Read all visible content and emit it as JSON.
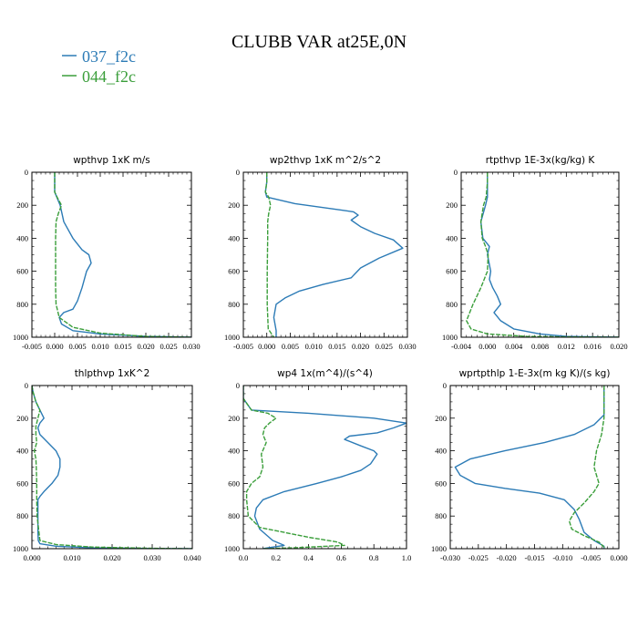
{
  "figure": {
    "title": "CLUBB VAR at25E,0N",
    "legend": [
      {
        "name": "037_f2c",
        "color": "#2c7bb6"
      },
      {
        "name": "044_f2c",
        "color": "#3a9e3a"
      }
    ]
  },
  "chart_data": [
    {
      "type": "line",
      "title": "wpthvp   1xK m/s",
      "xlim": [
        -0.005,
        0.03
      ],
      "ylim": [
        1000,
        0
      ],
      "xticks": [
        "-0.005",
        "0.000",
        "0.005",
        "0.010",
        "0.015",
        "0.020",
        "0.025",
        "0.030"
      ],
      "yticks": [
        "0",
        "200",
        "400",
        "600",
        "800",
        "1000"
      ],
      "grid": false,
      "series": [
        {
          "name": "037_f2c",
          "x": [
            0.0,
            0.0,
            0.0,
            0.0006,
            0.0012,
            0.002,
            0.004,
            0.006,
            0.0075,
            0.008,
            0.007,
            0.006,
            0.005,
            0.004,
            0.002,
            0.001,
            0.0015,
            0.004,
            0.01,
            0.02,
            0.03
          ],
          "y": [
            0,
            60,
            120,
            160,
            200,
            300,
            400,
            470,
            500,
            550,
            600,
            700,
            780,
            830,
            850,
            880,
            920,
            960,
            980,
            995,
            1000
          ]
        },
        {
          "name": "044_f2c",
          "x": [
            0.0,
            0.0,
            0.0,
            0.0007,
            0.0015,
            0.0008,
            0.0003,
            0.0002,
            0.0002,
            0.0002,
            0.0002,
            0.0003,
            0.001,
            0.004,
            0.01,
            0.02,
            0.03
          ],
          "y": [
            0,
            60,
            120,
            160,
            200,
            250,
            300,
            400,
            500,
            600,
            700,
            800,
            880,
            940,
            975,
            995,
            1000
          ]
        }
      ]
    },
    {
      "type": "line",
      "title": "wp2thvp   1xK m^2/s^2",
      "xlim": [
        -0.005,
        0.03
      ],
      "ylim": [
        1000,
        0
      ],
      "xticks": [
        "-0.005",
        "0.000",
        "0.005",
        "0.010",
        "0.015",
        "0.020",
        "0.025",
        "0.030"
      ],
      "yticks": [
        "0",
        "200",
        "400",
        "600",
        "800",
        "1000"
      ],
      "grid": false,
      "series": [
        {
          "name": "037_f2c",
          "x": [
            0.0,
            0.0,
            -0.0003,
            0.0,
            0.006,
            0.016,
            0.0185,
            0.0195,
            0.018,
            0.02,
            0.023,
            0.027,
            0.029,
            0.024,
            0.02,
            0.018,
            0.012,
            0.007,
            0.004,
            0.002,
            0.0015,
            0.002,
            0.002
          ],
          "y": [
            0,
            60,
            120,
            150,
            190,
            230,
            240,
            260,
            290,
            330,
            370,
            410,
            460,
            520,
            580,
            640,
            680,
            720,
            760,
            800,
            880,
            960,
            1000
          ]
        },
        {
          "name": "044_f2c",
          "x": [
            0.0,
            0.0,
            -0.0003,
            0.0004,
            0.0008,
            0.0004,
            0.0002,
            0.0002,
            0.0001,
            0.0001,
            0.0003,
            0.0015
          ],
          "y": [
            0,
            60,
            120,
            150,
            200,
            250,
            300,
            400,
            600,
            800,
            950,
            1000
          ]
        }
      ]
    },
    {
      "type": "line",
      "title": "rtpthvp   1E-3x(kg/kg) K",
      "xlim": [
        -0.004,
        0.02
      ],
      "ylim": [
        1000,
        0
      ],
      "xticks": [
        "-0.004",
        "0.000",
        "0.004",
        "0.008",
        "0.012",
        "0.016",
        "0.020"
      ],
      "yticks": [
        "0",
        "200",
        "400",
        "600",
        "800",
        "1000"
      ],
      "grid": false,
      "series": [
        {
          "name": "037_f2c",
          "x": [
            0.0,
            0.0,
            0.0,
            -0.0003,
            -0.001,
            -0.0007,
            0.0003,
            0.0,
            0.0005,
            0.0003,
            0.0008,
            0.0015,
            0.002,
            0.001,
            0.002,
            0.004,
            0.008,
            0.012,
            0.02
          ],
          "y": [
            0,
            60,
            150,
            200,
            300,
            400,
            450,
            500,
            600,
            650,
            700,
            750,
            800,
            850,
            900,
            950,
            980,
            995,
            1000
          ]
        },
        {
          "name": "044_f2c",
          "x": [
            0.0,
            0.0,
            -0.0002,
            -0.0006,
            -0.001,
            -0.0008,
            -0.0003,
            0.0001,
            0.0,
            -0.0005,
            -0.001,
            -0.0022,
            -0.0032,
            -0.0025,
            0.0,
            0.006,
            0.012,
            0.02
          ],
          "y": [
            0,
            60,
            150,
            200,
            300,
            400,
            450,
            500,
            600,
            650,
            700,
            800,
            900,
            950,
            980,
            995,
            998,
            1000
          ]
        }
      ]
    },
    {
      "type": "line",
      "title": "thlpthvp   1xK^2",
      "xlim": [
        0.0,
        0.04
      ],
      "ylim": [
        1000,
        0
      ],
      "xticks": [
        "0.000",
        "0.010",
        "0.020",
        "0.030",
        "0.040"
      ],
      "yticks": [
        "0",
        "200",
        "400",
        "600",
        "800",
        "1000"
      ],
      "grid": false,
      "series": [
        {
          "name": "037_f2c",
          "x": [
            0.0,
            0.0003,
            0.001,
            0.002,
            0.003,
            0.002,
            0.0015,
            0.002,
            0.004,
            0.006,
            0.007,
            0.007,
            0.0065,
            0.005,
            0.003,
            0.002,
            0.0015,
            0.0015,
            0.0015,
            0.0016,
            0.002,
            0.006,
            0.015,
            0.03,
            0.04
          ],
          "y": [
            0,
            40,
            100,
            150,
            200,
            230,
            260,
            300,
            350,
            400,
            450,
            500,
            550,
            600,
            650,
            680,
            700,
            800,
            900,
            950,
            970,
            985,
            995,
            999,
            1000
          ]
        },
        {
          "name": "044_f2c",
          "x": [
            0.0,
            0.0003,
            0.001,
            0.002,
            0.0015,
            0.001,
            0.001,
            0.0012,
            0.0006,
            0.001,
            0.0011,
            0.0012,
            0.0012,
            0.0013,
            0.002,
            0.006,
            0.015,
            0.03,
            0.04
          ],
          "y": [
            0,
            40,
            100,
            150,
            200,
            250,
            300,
            350,
            400,
            450,
            500,
            600,
            700,
            800,
            950,
            975,
            990,
            998,
            1000
          ]
        }
      ]
    },
    {
      "type": "line",
      "title": "wp4   1x(m^4)/(s^4)",
      "xlim": [
        0.0,
        1.0
      ],
      "ylim": [
        1000,
        0
      ],
      "xticks": [
        "0.0",
        "0.2",
        "0.4",
        "0.6",
        "0.8",
        "1.0"
      ],
      "yticks": [
        "0",
        "200",
        "400",
        "600",
        "800",
        "1000"
      ],
      "grid": false,
      "series": [
        {
          "name": "037_f2c",
          "x": [
            0.0,
            0.0,
            0.05,
            0.4,
            0.8,
            1.0,
            0.92,
            0.82,
            0.65,
            0.62,
            0.72,
            0.8,
            0.82,
            0.8,
            0.78,
            0.72,
            0.6,
            0.45,
            0.25,
            0.12,
            0.08,
            0.07,
            0.1,
            0.18,
            0.25,
            0.15,
            0.12
          ],
          "y": [
            0,
            80,
            150,
            170,
            200,
            230,
            260,
            290,
            310,
            330,
            370,
            400,
            420,
            450,
            480,
            520,
            560,
            600,
            650,
            700,
            750,
            800,
            880,
            950,
            980,
            995,
            1000
          ]
        },
        {
          "name": "044_f2c",
          "x": [
            0.0,
            0.0,
            0.05,
            0.15,
            0.2,
            0.16,
            0.13,
            0.12,
            0.14,
            0.11,
            0.12,
            0.1,
            0.05,
            0.02,
            0.02,
            0.03,
            0.1,
            0.4,
            0.58,
            0.62,
            0.3,
            0.12
          ],
          "y": [
            0,
            80,
            150,
            170,
            200,
            230,
            260,
            300,
            350,
            420,
            500,
            560,
            600,
            650,
            700,
            800,
            870,
            930,
            960,
            980,
            995,
            1000
          ]
        }
      ]
    },
    {
      "type": "line",
      "title": "wprtpthlp   1-E-3x(m kg K)/(s kg)",
      "xlim": [
        -0.031,
        0.003
      ],
      "ylim": [
        1000,
        0
      ],
      "xticks": [
        "-0.030",
        "-0.025",
        "-0.020",
        "-0.015",
        "-0.010",
        "-0.005",
        "0.000"
      ],
      "yticks": [
        "0",
        "200",
        "400",
        "600",
        "800",
        "1000"
      ],
      "grid": false,
      "series": [
        {
          "name": "037_f2c",
          "x": [
            0.0,
            0.0,
            0.0,
            -0.002,
            -0.006,
            -0.012,
            -0.02,
            -0.027,
            -0.03,
            -0.029,
            -0.026,
            -0.02,
            -0.013,
            -0.008,
            -0.006,
            -0.005,
            -0.004,
            -0.002,
            0.0,
            0.0
          ],
          "y": [
            0,
            100,
            180,
            240,
            300,
            350,
            400,
            450,
            500,
            550,
            600,
            630,
            660,
            700,
            760,
            820,
            900,
            950,
            985,
            1000
          ]
        },
        {
          "name": "044_f2c",
          "x": [
            0.0,
            0.0,
            0.0,
            -0.0005,
            -0.0015,
            -0.002,
            -0.0015,
            -0.001,
            -0.002,
            -0.004,
            -0.006,
            -0.007,
            -0.0065,
            -0.004,
            -0.001,
            0.0,
            0.0
          ],
          "y": [
            0,
            100,
            200,
            300,
            400,
            500,
            550,
            600,
            650,
            720,
            780,
            830,
            880,
            920,
            960,
            990,
            1000
          ]
        }
      ]
    }
  ]
}
